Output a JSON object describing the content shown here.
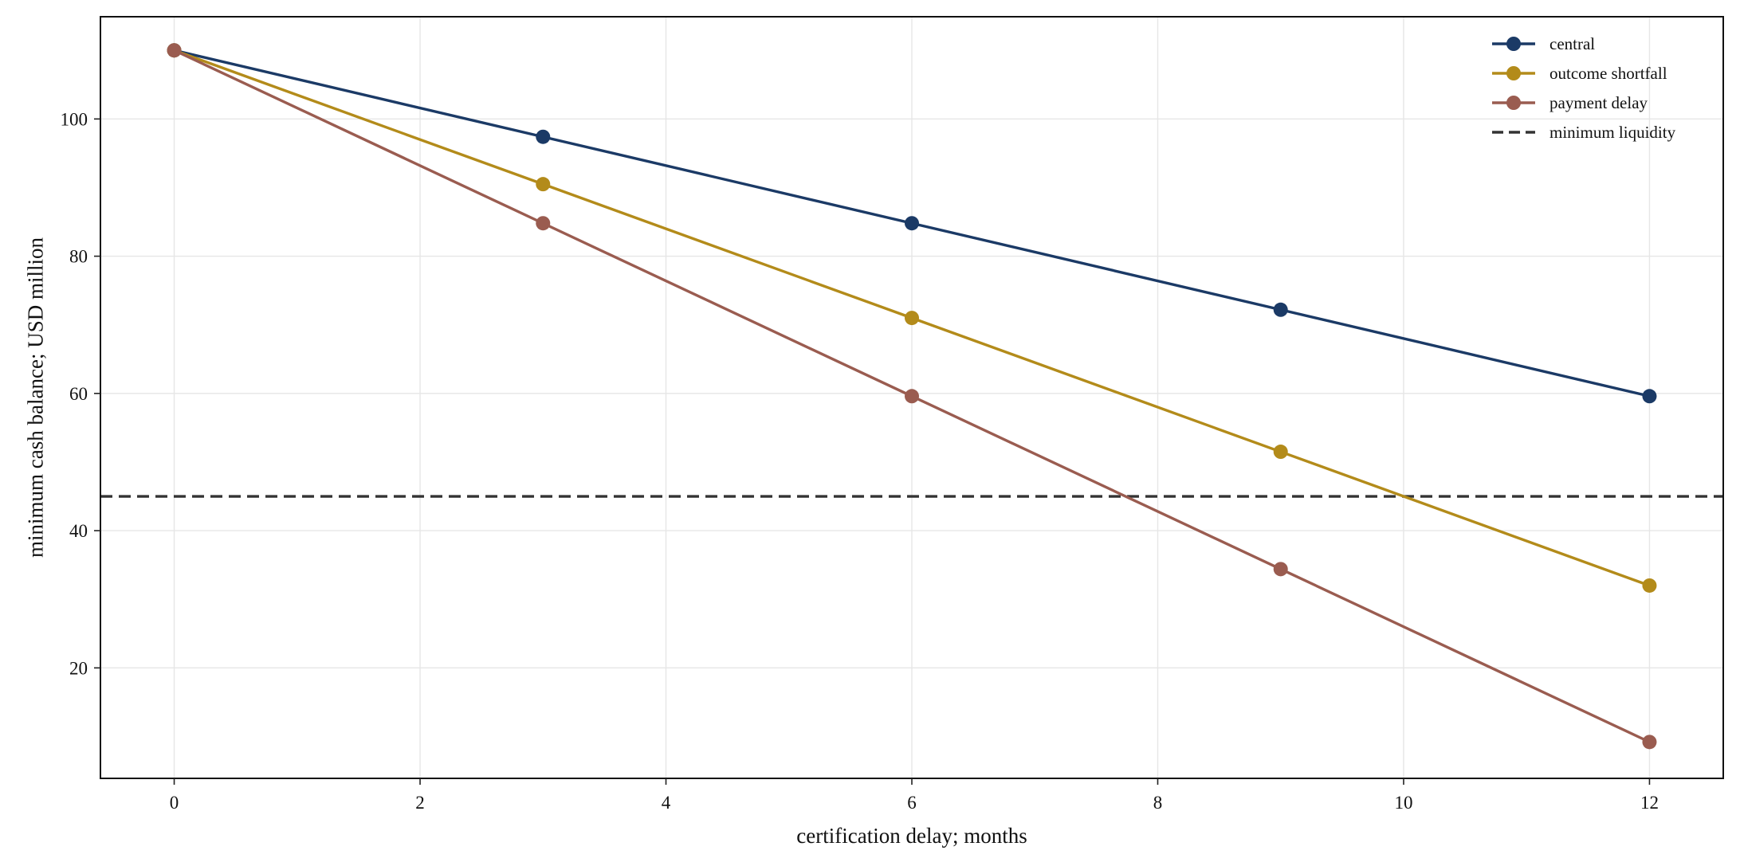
{
  "chart_data": {
    "type": "line",
    "title": "",
    "xlabel": "certification delay; months",
    "ylabel": "minimum cash balance; USD million",
    "xlim": [
      -0.6,
      12.6
    ],
    "ylim": [
      3.9,
      114.9
    ],
    "xticks": [
      0,
      2,
      4,
      6,
      8,
      10,
      12
    ],
    "yticks": [
      20,
      40,
      60,
      80,
      100
    ],
    "grid": true,
    "legend_position": "top-right",
    "x": [
      0,
      3,
      6,
      9,
      12
    ],
    "series": [
      {
        "name": "central",
        "color": "#1b3a66",
        "marker": "circle",
        "values": [
          110.0,
          97.4,
          84.8,
          72.2,
          59.6
        ]
      },
      {
        "name": "outcome shortfall",
        "color": "#b38b1a",
        "marker": "circle",
        "values": [
          110.0,
          90.5,
          71.0,
          51.5,
          32.0
        ]
      },
      {
        "name": "payment delay",
        "color": "#9a5c50",
        "marker": "circle",
        "values": [
          110.0,
          84.8,
          59.6,
          34.4,
          9.2
        ]
      }
    ],
    "reference_lines": [
      {
        "name": "minimum liquidity",
        "axis": "y",
        "value": 45,
        "color": "#333333",
        "style": "dashed"
      }
    ]
  }
}
